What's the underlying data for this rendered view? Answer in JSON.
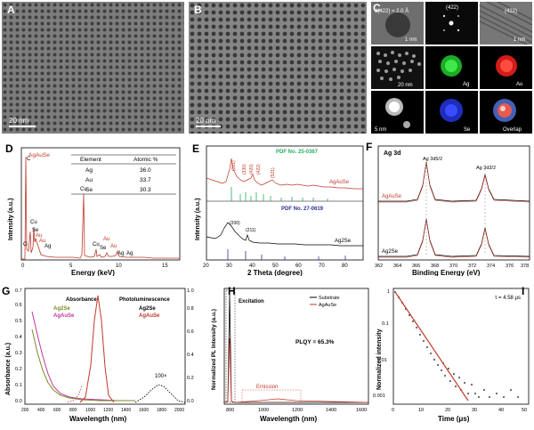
{
  "panels": {
    "A": {
      "label": "A",
      "scalebar": "20 nm"
    },
    "B": {
      "label": "B",
      "scalebar": "20 nm"
    },
    "C": {
      "label": "C",
      "d_spacing": "d(422) = 2.0 Å",
      "fft_label": "(422)",
      "lattice_label": "(422)",
      "scale_1nm": "1 nm",
      "scale_20nm": "20 nm",
      "scale_5nm": "5 nm",
      "map_labels": [
        "Ag",
        "Au",
        "Se",
        "Overlap"
      ],
      "colors": {
        "Ag": "#1fbf2a",
        "Au": "#e8201c",
        "Se": "#2236e0"
      }
    },
    "D": {
      "label": "D",
      "legend": "AgAuSe",
      "xlabel": "Energy (keV)",
      "ylabel": "Intensity (a.u.)",
      "xticks": [
        "0",
        "5",
        "10",
        "15"
      ],
      "peaks": [
        "C",
        "O",
        "Cu",
        "Se",
        "Au",
        "Au",
        "Ag",
        "Cu",
        "Cu",
        "Au",
        "Se",
        "Au",
        "Ag",
        "Ag"
      ],
      "table": {
        "headers": [
          "Element",
          "Atomic %"
        ],
        "rows": [
          [
            "Ag",
            "36.0"
          ],
          [
            "Au",
            "33.7"
          ],
          [
            "Se",
            "30.3"
          ]
        ]
      }
    },
    "E": {
      "label": "E",
      "pdf_top": "PDF No. 25-0367",
      "pdf_bottom": "PDF No. 27-0619",
      "series_top": "AgAuSe",
      "series_bottom": "Ag2Se",
      "xlabel": "2 Theta (degree)",
      "ylabel": "Intensity (a.u.)",
      "xticks": [
        "20",
        "30",
        "40",
        "50",
        "60",
        "70",
        "80"
      ],
      "top_peaks": [
        "(321)",
        "(330)",
        "(420)",
        "(422)",
        "(521)"
      ],
      "bottom_peaks": [
        "(200)",
        "(211)"
      ]
    },
    "F": {
      "label": "F",
      "title": "Ag 3d",
      "peak1": "Ag 3d5/2",
      "peak2": "Ag 3d3/2",
      "series_top": "AgAuSe",
      "series_bottom": "Ag2Se",
      "xlabel": "Binding Energy (eV)",
      "xticks": [
        "362",
        "364",
        "366",
        "368",
        "370",
        "372",
        "374",
        "376",
        "378"
      ]
    },
    "G": {
      "label": "G",
      "xlabel": "Wavelength (nm)",
      "ylabel": "Absorbance (a.u.)",
      "ylabel2": "Normalized PL Intensity (a.u.)",
      "abs_title": "Absorbance",
      "pl_title": "Photoluminescence",
      "legend_abs": [
        "Ag2Se",
        "AgAuSe"
      ],
      "legend_pl": [
        "Ag2Se",
        "AgAuSe"
      ],
      "annotation": "100×",
      "xticks": [
        "200",
        "400",
        "600",
        "800",
        "1000",
        "1200",
        "1400",
        "1600",
        "1800",
        "2000"
      ],
      "yticks": [
        "0.0",
        "0.1",
        "0.2",
        "0.3",
        "0.4",
        "0.5",
        "0.6",
        "0.7"
      ],
      "y2ticks": [
        "0.0",
        "0.2",
        "0.4",
        "0.6",
        "0.8",
        "1.0"
      ]
    },
    "H": {
      "label": "H",
      "legend": [
        "Substrate",
        "AgAuSe"
      ],
      "excitation": "Excitation",
      "emission": "Emission",
      "plqy": "PLQY = 65.3%",
      "xlabel": "Wavelength (nm)",
      "xticks": [
        "800",
        "1000",
        "1200",
        "1400",
        "1600"
      ]
    },
    "I": {
      "label": "I",
      "tau": "τ = 4.58 μs",
      "xlabel": "Time (μs)",
      "ylabel": "Normalized intensity",
      "xticks": [
        "0",
        "10",
        "20",
        "30",
        "40",
        "50"
      ],
      "yticks": [
        "1",
        "0.1",
        "0.01",
        "0.001"
      ]
    }
  },
  "chart_data": [
    {
      "type": "table",
      "title": "",
      "headers": [
        "Element",
        "Atomic %"
      ],
      "rows": [
        [
          "Ag",
          36.0
        ],
        [
          "Au",
          33.7
        ],
        [
          "Se",
          30.3
        ]
      ]
    },
    {
      "type": "line",
      "xlabel": "Time (μs)",
      "ylabel": "Normalized intensity",
      "yscale": "log",
      "xlim": [
        0,
        50
      ],
      "ylim": [
        0.0005,
        1
      ],
      "series": [
        {
          "name": "fit",
          "tau_us": 4.58
        }
      ]
    }
  ]
}
